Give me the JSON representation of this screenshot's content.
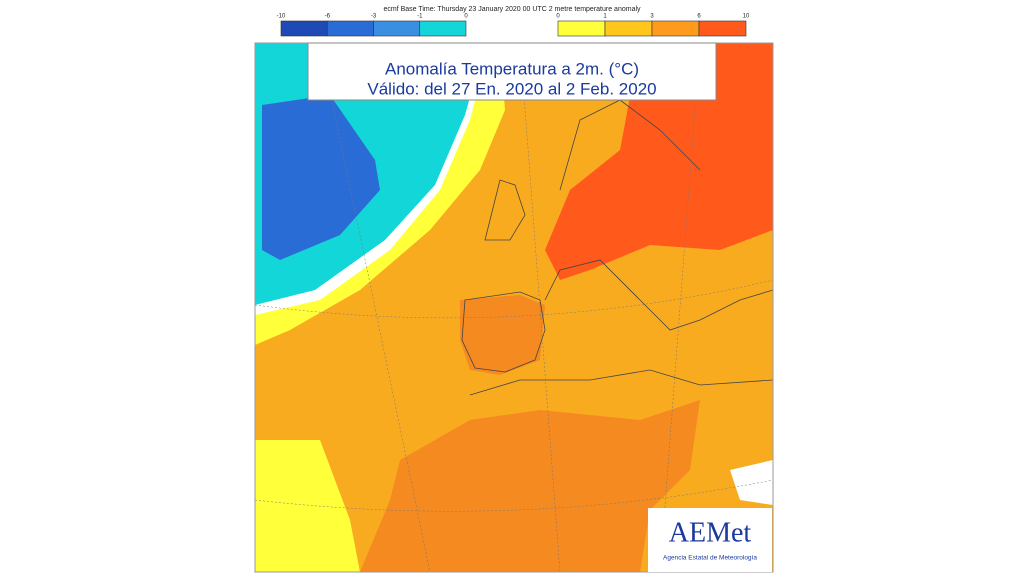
{
  "header": {
    "text": "ecmf  Base Time: Thursday 23 January 2020 00 UTC 2 metre temperature anomaly"
  },
  "legend": {
    "cold": {
      "labels": [
        -10,
        -6,
        -3,
        -1,
        0
      ],
      "colors": [
        "#1d4ab5",
        "#2a6cd6",
        "#3b8fe3",
        "#12d6d8"
      ]
    },
    "warm": {
      "labels": [
        0,
        1,
        3,
        6,
        10
      ],
      "colors": [
        "#ffff3a",
        "#ffc61c",
        "#ff9b1c",
        "#ff5a1c"
      ]
    }
  },
  "title": {
    "line1": "Anomalía Temperatura a 2m. (°C)",
    "line2": "Válido: del 27 En. 2020 al 2 Feb. 2020"
  },
  "logo": {
    "name": "AEMet",
    "subtitle": "Agencia Estatal de Meteorología"
  }
}
